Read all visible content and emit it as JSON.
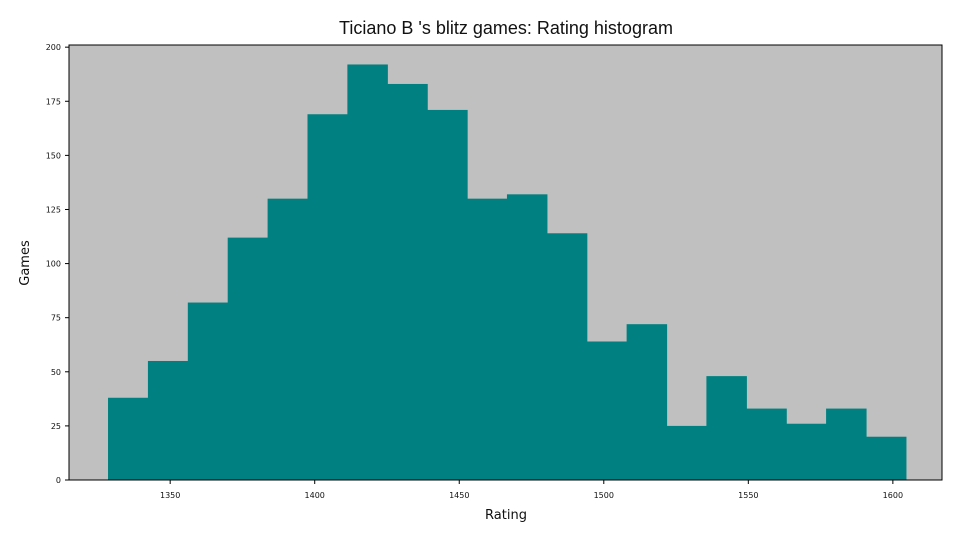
{
  "chart_data": {
    "type": "bar",
    "title": "Ticiano B 's blitz games: Rating histogram",
    "xlabel": "Rating",
    "ylabel": "Games",
    "xlim": [
      1315,
      1617
    ],
    "ylim": [
      0,
      201
    ],
    "xticks": [
      1350,
      1400,
      1450,
      1500,
      1550,
      1600
    ],
    "yticks": [
      0,
      25,
      50,
      75,
      100,
      125,
      150,
      175,
      200
    ],
    "bin_start": 1328.5,
    "bin_width": 13.8,
    "values": [
      38,
      55,
      82,
      112,
      130,
      169,
      192,
      183,
      171,
      130,
      132,
      114,
      64,
      72,
      25,
      48,
      33,
      26,
      33,
      20
    ],
    "grid": false,
    "legend": "none",
    "colors": {
      "bar": "#008080",
      "plot_background": "#c0c0c0",
      "axes": "#000000"
    }
  }
}
